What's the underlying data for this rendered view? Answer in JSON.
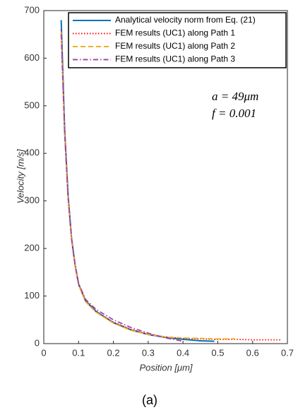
{
  "chart_data": {
    "type": "line",
    "x": [
      0.05,
      0.06,
      0.07,
      0.08,
      0.09,
      0.1,
      0.12,
      0.15,
      0.2,
      0.25,
      0.3,
      0.35,
      0.4,
      0.45,
      0.49,
      0.55,
      0.6,
      0.68
    ],
    "series": [
      {
        "name": "Analytical velocity norm from Eq. (21)",
        "color": "#0072bd",
        "linestyle": "solid",
        "values": [
          680,
          450,
          310,
          220,
          165,
          125,
          90,
          68,
          44,
          29,
          19,
          13,
          9,
          6,
          5,
          null,
          null,
          null
        ]
      },
      {
        "name": "FEM results (UC1) along Path 1",
        "color": "#ff0000",
        "linestyle": "dotted",
        "values": [
          660,
          445,
          305,
          218,
          163,
          124,
          89,
          67,
          45,
          30,
          20,
          14,
          11,
          10,
          9,
          9,
          8,
          8
        ]
      },
      {
        "name": "FEM results (UC1) along Path 2",
        "color": "#edb120",
        "linestyle": "dashed",
        "values": [
          655,
          440,
          302,
          216,
          162,
          123,
          88,
          66,
          43,
          28,
          19,
          14,
          12,
          11,
          10,
          10,
          null,
          null
        ]
      },
      {
        "name": "FEM results (UC1) along Path 3",
        "color": "#a846a0",
        "linestyle": "dashdot",
        "values": [
          650,
          442,
          306,
          220,
          166,
          127,
          93,
          72,
          50,
          34,
          22,
          12,
          5,
          null,
          null,
          null,
          null,
          null
        ]
      }
    ],
    "xlabel": "Position [μm]",
    "ylabel": "Velocity [m/s]",
    "xlim": [
      0,
      0.7
    ],
    "xticks": [
      0,
      0.1,
      0.2,
      0.3,
      0.4,
      0.5,
      0.6,
      0.7
    ],
    "ylim": [
      0,
      700
    ],
    "yticks": [
      0,
      100,
      200,
      300,
      400,
      500,
      600,
      700
    ],
    "annotations": [
      "a = 49μm",
      "f = 0.001"
    ],
    "caption": "(a)",
    "legend": "upper right"
  }
}
